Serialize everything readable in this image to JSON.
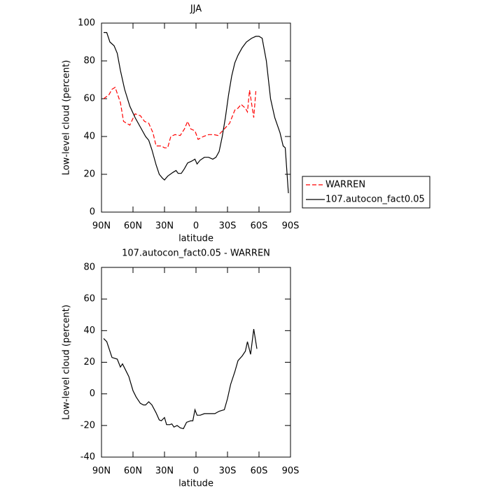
{
  "chart_data": [
    {
      "type": "line",
      "title": "JJA",
      "xlabel": "latitude",
      "ylabel": "Low-level cloud (percent)",
      "xlim": [
        90,
        -90
      ],
      "xticks": [
        {
          "value": 90,
          "label": "90N"
        },
        {
          "value": 60,
          "label": "60N"
        },
        {
          "value": 30,
          "label": "30N"
        },
        0,
        {
          "value": -30,
          "label": "30S"
        },
        {
          "value": -60,
          "label": "60S"
        },
        {
          "value": -90,
          "label": "90S"
        }
      ],
      "ylim": [
        0,
        100
      ],
      "yticks": [
        0,
        20,
        40,
        60,
        80,
        100
      ],
      "legend": "outside-right",
      "series": [
        {
          "name": "WARREN",
          "color": "#ff0000",
          "linestyle": "dashed",
          "x": [
            88,
            83,
            80,
            77,
            72,
            69,
            63,
            58,
            53,
            49,
            45,
            41,
            38,
            33,
            30,
            27,
            24,
            20,
            15,
            11,
            8,
            5,
            1,
            -2,
            -7,
            -12,
            -17,
            -21,
            -27,
            -32,
            -37,
            -40,
            -43,
            -47,
            -49,
            -51,
            -55,
            -57
          ],
          "values": [
            60,
            62,
            65,
            66,
            58,
            48,
            46,
            52,
            51,
            48,
            47,
            42,
            35,
            35,
            34,
            34,
            40,
            41,
            40.5,
            44,
            48,
            44,
            43,
            38.5,
            40,
            41,
            41,
            40.5,
            44,
            47,
            54,
            55,
            57,
            55,
            53,
            64.5,
            50,
            64
          ]
        },
        {
          "name": "107.autocon_fact0.05",
          "color": "#000000",
          "linestyle": "solid",
          "x": [
            88,
            85,
            82,
            78,
            75,
            72,
            68,
            63,
            58,
            53,
            48,
            45,
            42,
            38,
            35,
            32,
            30,
            27,
            22,
            19,
            17,
            14,
            11,
            8,
            4,
            1,
            -1,
            -4,
            -8,
            -12,
            -16,
            -19,
            -22,
            -25,
            -28,
            -31,
            -34,
            -37,
            -40,
            -44,
            -48,
            -53,
            -57,
            -60,
            -63,
            -67,
            -71,
            -75,
            -80,
            -83,
            -85,
            -88
          ],
          "values": [
            95,
            95,
            90,
            88,
            84,
            75,
            65,
            56,
            50,
            45,
            40,
            38,
            33,
            25,
            20,
            18,
            17,
            19,
            21,
            22,
            20.5,
            20.5,
            23,
            26,
            27,
            28,
            25.5,
            27.5,
            29,
            29,
            28,
            29,
            32,
            40,
            50,
            62,
            72,
            79,
            83,
            87,
            90,
            92,
            93,
            93,
            92,
            80,
            60,
            50,
            42,
            35,
            34,
            10
          ]
        }
      ]
    },
    {
      "type": "line",
      "title": "107.autocon_fact0.05 - WARREN",
      "xlabel": "latitude",
      "ylabel": "Low-level cloud (percent)",
      "xlim": [
        90,
        -90
      ],
      "xticks": [
        {
          "value": 90,
          "label": "90N"
        },
        {
          "value": 60,
          "label": "60N"
        },
        {
          "value": 30,
          "label": "30N"
        },
        0,
        {
          "value": -30,
          "label": "30S"
        },
        {
          "value": -60,
          "label": "60S"
        },
        {
          "value": -90,
          "label": "90S"
        }
      ],
      "ylim": [
        -40,
        80
      ],
      "yticks": [
        -40,
        -20,
        0,
        20,
        40,
        60,
        80
      ],
      "series": [
        {
          "color": "#000000",
          "linestyle": "solid",
          "x": [
            88,
            85,
            80,
            75,
            72,
            70,
            67,
            64,
            60,
            57,
            53,
            50,
            48,
            45,
            42,
            38,
            35,
            33,
            30,
            28,
            25,
            23,
            21,
            18,
            15,
            12,
            9,
            5,
            3,
            1,
            -1,
            -4,
            -8,
            -14,
            -18,
            -22,
            -27,
            -30,
            -33,
            -37,
            -40,
            -44,
            -47,
            -49,
            -52,
            -55,
            -58
          ],
          "values": [
            35,
            33,
            23,
            22,
            17,
            19,
            15,
            11,
            2,
            -2,
            -6,
            -7,
            -7,
            -5,
            -7,
            -12,
            -16.5,
            -17,
            -15,
            -19.5,
            -19.5,
            -19,
            -21,
            -20,
            -21.5,
            -22,
            -18,
            -17,
            -17,
            -10,
            -13.5,
            -13.5,
            -12.5,
            -12.5,
            -12.5,
            -11,
            -10,
            -3,
            6,
            14,
            21,
            24,
            27,
            33,
            25,
            41,
            28.5
          ]
        }
      ]
    }
  ]
}
